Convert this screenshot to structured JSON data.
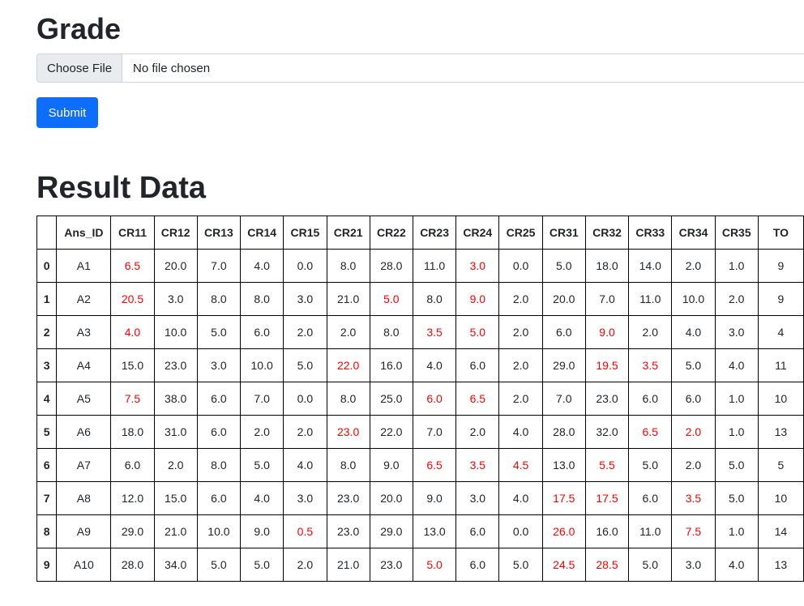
{
  "page": {
    "grade_heading": "Grade",
    "file_button": "Choose File",
    "file_status": "No file chosen",
    "submit_label": "Submit",
    "result_heading": "Result Data"
  },
  "colors": {
    "primary": "#0d6efd",
    "highlight": "#ff0000"
  },
  "table": {
    "headers": [
      "",
      "Ans_ID",
      "CR11",
      "CR12",
      "CR13",
      "CR14",
      "CR15",
      "CR21",
      "CR22",
      "CR23",
      "CR24",
      "CR25",
      "CR31",
      "CR32",
      "CR33",
      "CR34",
      "CR35",
      "TO"
    ],
    "rows": [
      {
        "index": "0",
        "cells": [
          {
            "v": "A1"
          },
          {
            "v": "6.5",
            "red": true
          },
          {
            "v": "20.0"
          },
          {
            "v": "7.0"
          },
          {
            "v": "4.0"
          },
          {
            "v": "0.0"
          },
          {
            "v": "8.0"
          },
          {
            "v": "28.0"
          },
          {
            "v": "11.0"
          },
          {
            "v": "3.0",
            "red": true
          },
          {
            "v": "0.0"
          },
          {
            "v": "5.0"
          },
          {
            "v": "18.0"
          },
          {
            "v": "14.0"
          },
          {
            "v": "2.0"
          },
          {
            "v": "1.0"
          },
          {
            "v": "9"
          }
        ]
      },
      {
        "index": "1",
        "cells": [
          {
            "v": "A2"
          },
          {
            "v": "20.5",
            "red": true
          },
          {
            "v": "3.0"
          },
          {
            "v": "8.0"
          },
          {
            "v": "8.0"
          },
          {
            "v": "3.0"
          },
          {
            "v": "21.0"
          },
          {
            "v": "5.0",
            "red": true
          },
          {
            "v": "8.0"
          },
          {
            "v": "9.0",
            "red": true
          },
          {
            "v": "2.0"
          },
          {
            "v": "20.0"
          },
          {
            "v": "7.0"
          },
          {
            "v": "11.0"
          },
          {
            "v": "10.0"
          },
          {
            "v": "2.0"
          },
          {
            "v": "9"
          }
        ]
      },
      {
        "index": "2",
        "cells": [
          {
            "v": "A3"
          },
          {
            "v": "4.0",
            "red": true
          },
          {
            "v": "10.0"
          },
          {
            "v": "5.0"
          },
          {
            "v": "6.0"
          },
          {
            "v": "2.0"
          },
          {
            "v": "2.0"
          },
          {
            "v": "8.0"
          },
          {
            "v": "3.5",
            "red": true
          },
          {
            "v": "5.0",
            "red": true
          },
          {
            "v": "2.0"
          },
          {
            "v": "6.0"
          },
          {
            "v": "9.0",
            "red": true
          },
          {
            "v": "2.0"
          },
          {
            "v": "4.0"
          },
          {
            "v": "3.0"
          },
          {
            "v": "4"
          }
        ]
      },
      {
        "index": "3",
        "cells": [
          {
            "v": "A4"
          },
          {
            "v": "15.0"
          },
          {
            "v": "23.0"
          },
          {
            "v": "3.0"
          },
          {
            "v": "10.0"
          },
          {
            "v": "5.0"
          },
          {
            "v": "22.0",
            "red": true
          },
          {
            "v": "16.0"
          },
          {
            "v": "4.0"
          },
          {
            "v": "6.0"
          },
          {
            "v": "2.0"
          },
          {
            "v": "29.0"
          },
          {
            "v": "19.5",
            "red": true
          },
          {
            "v": "3.5",
            "red": true
          },
          {
            "v": "5.0"
          },
          {
            "v": "4.0"
          },
          {
            "v": "11"
          }
        ]
      },
      {
        "index": "4",
        "cells": [
          {
            "v": "A5"
          },
          {
            "v": "7.5",
            "red": true
          },
          {
            "v": "38.0"
          },
          {
            "v": "6.0"
          },
          {
            "v": "7.0"
          },
          {
            "v": "0.0"
          },
          {
            "v": "8.0"
          },
          {
            "v": "25.0"
          },
          {
            "v": "6.0",
            "red": true
          },
          {
            "v": "6.5",
            "red": true
          },
          {
            "v": "2.0"
          },
          {
            "v": "7.0"
          },
          {
            "v": "23.0"
          },
          {
            "v": "6.0"
          },
          {
            "v": "6.0"
          },
          {
            "v": "1.0"
          },
          {
            "v": "10"
          }
        ]
      },
      {
        "index": "5",
        "cells": [
          {
            "v": "A6"
          },
          {
            "v": "18.0"
          },
          {
            "v": "31.0"
          },
          {
            "v": "6.0"
          },
          {
            "v": "2.0"
          },
          {
            "v": "2.0"
          },
          {
            "v": "23.0",
            "red": true
          },
          {
            "v": "22.0"
          },
          {
            "v": "7.0"
          },
          {
            "v": "2.0"
          },
          {
            "v": "4.0"
          },
          {
            "v": "28.0"
          },
          {
            "v": "32.0"
          },
          {
            "v": "6.5",
            "red": true
          },
          {
            "v": "2.0",
            "red": true
          },
          {
            "v": "1.0"
          },
          {
            "v": "13"
          }
        ]
      },
      {
        "index": "6",
        "cells": [
          {
            "v": "A7"
          },
          {
            "v": "6.0"
          },
          {
            "v": "2.0"
          },
          {
            "v": "8.0"
          },
          {
            "v": "5.0"
          },
          {
            "v": "4.0"
          },
          {
            "v": "8.0"
          },
          {
            "v": "9.0"
          },
          {
            "v": "6.5",
            "red": true
          },
          {
            "v": "3.5",
            "red": true
          },
          {
            "v": "4.5",
            "red": true
          },
          {
            "v": "13.0"
          },
          {
            "v": "5.5",
            "red": true
          },
          {
            "v": "5.0"
          },
          {
            "v": "2.0"
          },
          {
            "v": "5.0"
          },
          {
            "v": "5"
          }
        ]
      },
      {
        "index": "7",
        "cells": [
          {
            "v": "A8"
          },
          {
            "v": "12.0"
          },
          {
            "v": "15.0"
          },
          {
            "v": "6.0"
          },
          {
            "v": "4.0"
          },
          {
            "v": "3.0"
          },
          {
            "v": "23.0"
          },
          {
            "v": "20.0"
          },
          {
            "v": "9.0"
          },
          {
            "v": "3.0"
          },
          {
            "v": "4.0"
          },
          {
            "v": "17.5",
            "red": true
          },
          {
            "v": "17.5",
            "red": true
          },
          {
            "v": "6.0"
          },
          {
            "v": "3.5",
            "red": true
          },
          {
            "v": "5.0"
          },
          {
            "v": "10"
          }
        ]
      },
      {
        "index": "8",
        "cells": [
          {
            "v": "A9"
          },
          {
            "v": "29.0"
          },
          {
            "v": "21.0"
          },
          {
            "v": "10.0"
          },
          {
            "v": "9.0"
          },
          {
            "v": "0.5",
            "red": true
          },
          {
            "v": "23.0"
          },
          {
            "v": "29.0"
          },
          {
            "v": "13.0"
          },
          {
            "v": "6.0"
          },
          {
            "v": "0.0"
          },
          {
            "v": "26.0",
            "red": true
          },
          {
            "v": "16.0"
          },
          {
            "v": "11.0"
          },
          {
            "v": "7.5",
            "red": true
          },
          {
            "v": "1.0"
          },
          {
            "v": "14"
          }
        ]
      },
      {
        "index": "9",
        "cells": [
          {
            "v": "A10"
          },
          {
            "v": "28.0"
          },
          {
            "v": "34.0"
          },
          {
            "v": "5.0"
          },
          {
            "v": "5.0"
          },
          {
            "v": "2.0"
          },
          {
            "v": "21.0"
          },
          {
            "v": "23.0"
          },
          {
            "v": "5.0",
            "red": true
          },
          {
            "v": "6.0"
          },
          {
            "v": "5.0"
          },
          {
            "v": "24.5",
            "red": true
          },
          {
            "v": "28.5",
            "red": true
          },
          {
            "v": "5.0"
          },
          {
            "v": "3.0"
          },
          {
            "v": "4.0"
          },
          {
            "v": "13"
          }
        ]
      }
    ]
  }
}
